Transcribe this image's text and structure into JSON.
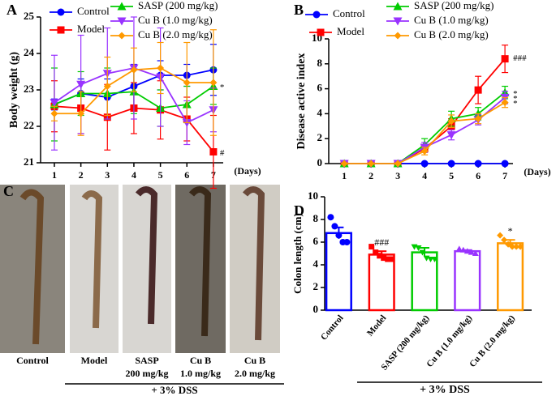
{
  "chart_data": [
    {
      "type": "line",
      "panel_label": "A",
      "ylabel": "Body weight (g)",
      "xlabel": "(Days)",
      "x": [
        1,
        2,
        3,
        4,
        5,
        6,
        7
      ],
      "xlim": [
        0.48,
        7.37
      ],
      "xticks": [
        1,
        2,
        3,
        4,
        5,
        6,
        7
      ],
      "ylim": [
        21,
        25
      ],
      "yticks": [
        21,
        22,
        23,
        24,
        25
      ],
      "series": [
        {
          "name": "Control",
          "color": "#0000ff",
          "marker": "circle",
          "values": [
            22.6,
            22.9,
            22.8,
            23.1,
            23.4,
            23.4,
            23.55
          ],
          "errors": [
            0.15,
            0.4,
            0.5,
            0.6,
            0.4,
            0.3,
            0.7
          ]
        },
        {
          "name": "Model",
          "color": "#ff0000",
          "marker": "square",
          "values": [
            22.55,
            22.5,
            22.25,
            22.5,
            22.45,
            22.2,
            21.3
          ],
          "errors": [
            0.7,
            0.7,
            0.9,
            0.7,
            0.8,
            0.6,
            1.0
          ],
          "annotation": "#"
        },
        {
          "name": "SASP (200 mg/kg)",
          "color": "#00cc00",
          "marker": "triangle-up",
          "values": [
            22.6,
            22.9,
            22.9,
            22.95,
            22.5,
            22.6,
            23.1
          ],
          "errors": [
            1.0,
            0.6,
            0.7,
            0.6,
            0.5,
            0.5,
            0.5
          ],
          "annotation": "*"
        },
        {
          "name": "Cu B (1.0 mg/kg)",
          "color": "#9933ff",
          "marker": "triangle-down",
          "values": [
            22.65,
            23.15,
            23.45,
            23.6,
            23.35,
            22.1,
            22.45
          ],
          "errors": [
            1.3,
            1.35,
            1.25,
            1.4,
            1.35,
            0.6,
            0.6
          ]
        },
        {
          "name": "Cu B (2.0 mg/kg)",
          "color": "#ff9900",
          "marker": "diamond",
          "values": [
            22.35,
            22.35,
            23.1,
            23.55,
            23.6,
            23.2,
            23.2
          ],
          "errors": [
            0.2,
            0.6,
            0.8,
            0.6,
            0.7,
            1.1,
            1.45
          ]
        }
      ]
    },
    {
      "type": "line",
      "panel_label": "B",
      "ylabel": "Disease active index",
      "xlabel": "(Days)",
      "x": [
        1,
        2,
        3,
        4,
        5,
        6,
        7
      ],
      "xlim": [
        0.42,
        7.3
      ],
      "xticks": [
        1,
        2,
        3,
        4,
        5,
        6,
        7
      ],
      "ylim": [
        0,
        10
      ],
      "yticks": [
        0,
        2,
        4,
        6,
        8,
        10
      ],
      "series": [
        {
          "name": "Control",
          "color": "#0000ff",
          "marker": "circle",
          "values": [
            0,
            0,
            0,
            0,
            0,
            0,
            0
          ],
          "errors": [
            0,
            0,
            0,
            0,
            0,
            0,
            0
          ]
        },
        {
          "name": "Model",
          "color": "#ff0000",
          "marker": "square",
          "values": [
            0,
            0,
            0,
            1.2,
            3.0,
            5.9,
            8.4
          ],
          "errors": [
            0,
            0,
            0,
            0.3,
            0.6,
            1.1,
            1.1
          ],
          "annotation": "###"
        },
        {
          "name": "SASP (200 mg/kg)",
          "color": "#00cc00",
          "marker": "triangle-up",
          "values": [
            0,
            0,
            0,
            1.5,
            3.6,
            4.0,
            5.7
          ],
          "errors": [
            0,
            0,
            0,
            0.5,
            0.6,
            0.5,
            0.5
          ],
          "annotation": "*"
        },
        {
          "name": "Cu B (1.0 mg/kg)",
          "color": "#9933ff",
          "marker": "triangle-down",
          "values": [
            0,
            0,
            0,
            1.3,
            2.3,
            3.5,
            5.3
          ],
          "errors": [
            0,
            0,
            0,
            0.4,
            0.4,
            0.4,
            0.5
          ],
          "annotation": "*"
        },
        {
          "name": "Cu B (2.0 mg/kg)",
          "color": "#ff9900",
          "marker": "diamond",
          "values": [
            0,
            0,
            0,
            1.0,
            3.4,
            3.6,
            4.9
          ],
          "errors": [
            0,
            0,
            0,
            0.3,
            0.5,
            0.4,
            0.4
          ],
          "annotation": "*"
        }
      ]
    },
    {
      "type": "bar",
      "panel_label": "D",
      "ylabel": "Colon length (cm)",
      "footer": "+ 3% DSS",
      "categories": [
        "Control",
        "Model",
        "SASP (200 mg/kg)",
        "Cu B (1.0 mg/kg)",
        "Cu B (2.0 mg/kg)"
      ],
      "colors": [
        "#0000ff",
        "#ff0000",
        "#00cc00",
        "#9933ff",
        "#ff9900"
      ],
      "values": [
        6.8,
        4.9,
        5.1,
        5.2,
        5.9
      ],
      "errors": [
        0.5,
        0.3,
        0.4,
        0.1,
        0.3
      ],
      "points": [
        [
          8.2,
          7.4,
          6.6,
          6.0,
          6.0
        ],
        [
          5.6,
          5.1,
          4.8,
          4.6,
          4.5,
          4.5
        ],
        [
          5.6,
          5.5,
          5.1,
          4.6,
          4.5,
          4.5
        ],
        [
          5.4,
          5.3,
          5.2,
          5.1,
          5.0
        ],
        [
          6.6,
          6.2,
          5.8,
          5.6,
          5.6,
          5.6
        ]
      ],
      "value_annotations": [
        null,
        "###",
        null,
        null,
        "*"
      ],
      "ylim": [
        0,
        10
      ],
      "yticks": [
        0,
        2,
        4,
        6,
        8,
        10
      ]
    }
  ],
  "photo_panel": {
    "panel_label": "C",
    "footer": "+ 3% DSS",
    "labels": [
      [
        "Control"
      ],
      [
        "Model"
      ],
      [
        "SASP",
        "200 mg/kg"
      ],
      [
        "Cu B",
        "1.0 mg/kg"
      ],
      [
        "Cu B",
        "2.0 mg/kg"
      ]
    ]
  }
}
